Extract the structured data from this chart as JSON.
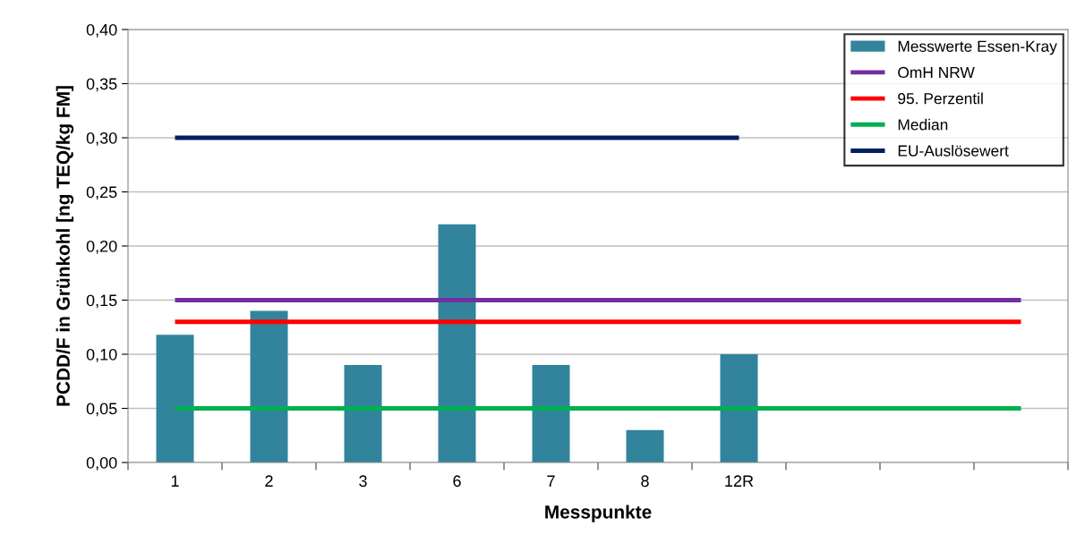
{
  "chart_data": {
    "type": "bar",
    "xlabel": "Messpunkte",
    "ylabel": "PCDD/F in Grünkohl [ng TEQ/kg FM]",
    "categories": [
      "1",
      "2",
      "3",
      "6",
      "7",
      "8",
      "12R",
      null,
      null,
      null
    ],
    "series": [
      {
        "name": "Messwerte Essen-Kray",
        "color": "#31849b",
        "values": [
          0.118,
          0.14,
          0.09,
          0.22,
          0.09,
          0.03,
          0.1,
          null,
          null,
          null
        ]
      },
      {
        "name": "OmH NRW",
        "type": "line",
        "color": "#7030a0",
        "values": [
          0.15,
          0.15,
          0.15,
          0.15,
          0.15,
          0.15,
          0.15,
          0.15,
          0.15,
          0.15
        ]
      },
      {
        "name": "95. Perzentil",
        "type": "line",
        "color": "#ff0000",
        "values": [
          0.13,
          0.13,
          0.13,
          0.13,
          0.13,
          0.13,
          0.13,
          0.13,
          0.13,
          0.13
        ]
      },
      {
        "name": "Median",
        "type": "line",
        "color": "#00b050",
        "values": [
          0.05,
          0.05,
          0.05,
          0.05,
          0.05,
          0.05,
          0.05,
          0.05,
          0.05,
          0.05
        ]
      },
      {
        "name": "EU-Auslösewert",
        "type": "line",
        "color": "#002060",
        "values": [
          0.3,
          0.3,
          0.3,
          0.3,
          0.3,
          0.3,
          0.3,
          null,
          null,
          null
        ]
      }
    ],
    "ylim": [
      0,
      0.4
    ],
    "yticks": [
      {
        "value": 0,
        "label": "0,00"
      },
      {
        "value": 0.05,
        "label": "0,05"
      },
      {
        "value": 0.1,
        "label": "0,10"
      },
      {
        "value": 0.15,
        "label": "0,15"
      },
      {
        "value": 0.2,
        "label": "0,20"
      },
      {
        "value": 0.25,
        "label": "0,25"
      },
      {
        "value": 0.3,
        "label": "0,30"
      },
      {
        "value": 0.35,
        "label": "0,35"
      },
      {
        "value": 0.4,
        "label": "0,40"
      }
    ],
    "grid": "y",
    "legend": "top right",
    "marker": "none",
    "line_style": "solid"
  }
}
